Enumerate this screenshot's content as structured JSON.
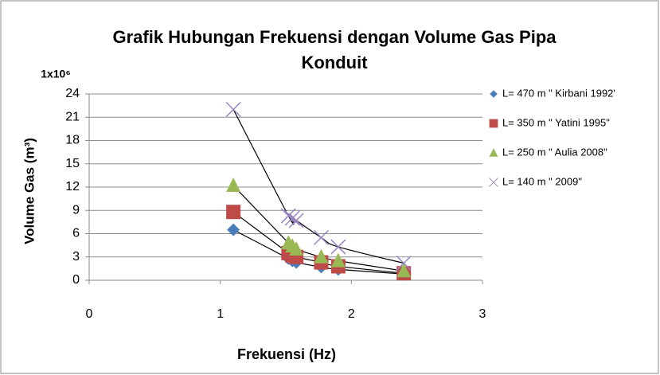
{
  "chart_data": {
    "type": "scatter",
    "title": [
      "Grafik Hubungan Frekuensi dengan Volume Gas Pipa",
      "Konduit"
    ],
    "y_multiplier": "1x10⁶",
    "x_label": "Frekuensi (Hz)",
    "y_label": "Volume Gas (m³)",
    "x": [
      1.1,
      1.52,
      1.55,
      1.58,
      1.77,
      1.9,
      2.4
    ],
    "series": [
      {
        "name": "L= 470 m \" Kirbani 1992'",
        "color": "#4a7ebb",
        "marker": "diamond",
        "values": [
          6.5,
          2.8,
          2.5,
          2.3,
          1.7,
          1.4,
          0.8
        ]
      },
      {
        "name": "L= 350 m \" Yatini 1995\"",
        "color": "#be4b48",
        "marker": "square",
        "values": [
          8.8,
          3.5,
          3.2,
          3.0,
          2.3,
          1.8,
          0.9
        ]
      },
      {
        "name": "L= 250 m \" Aulia 2008\"",
        "color": "#98b954",
        "marker": "triangle",
        "values": [
          12.2,
          4.8,
          4.4,
          4.0,
          3.0,
          2.5,
          1.2
        ]
      },
      {
        "name": "L= 140 m \" 2009\"",
        "color": "#9a84c0",
        "marker": "cross",
        "values": [
          22,
          8.3,
          8.0,
          7.7,
          5.5,
          4.3,
          2.2
        ]
      }
    ],
    "xlim": [
      0,
      3
    ],
    "xticks": [
      0,
      1,
      2,
      3
    ],
    "ylim": [
      0,
      24
    ],
    "yticks": [
      0,
      3,
      6,
      9,
      12,
      15,
      18,
      21,
      24
    ],
    "grid": true,
    "trendline": true,
    "legend": "right"
  }
}
